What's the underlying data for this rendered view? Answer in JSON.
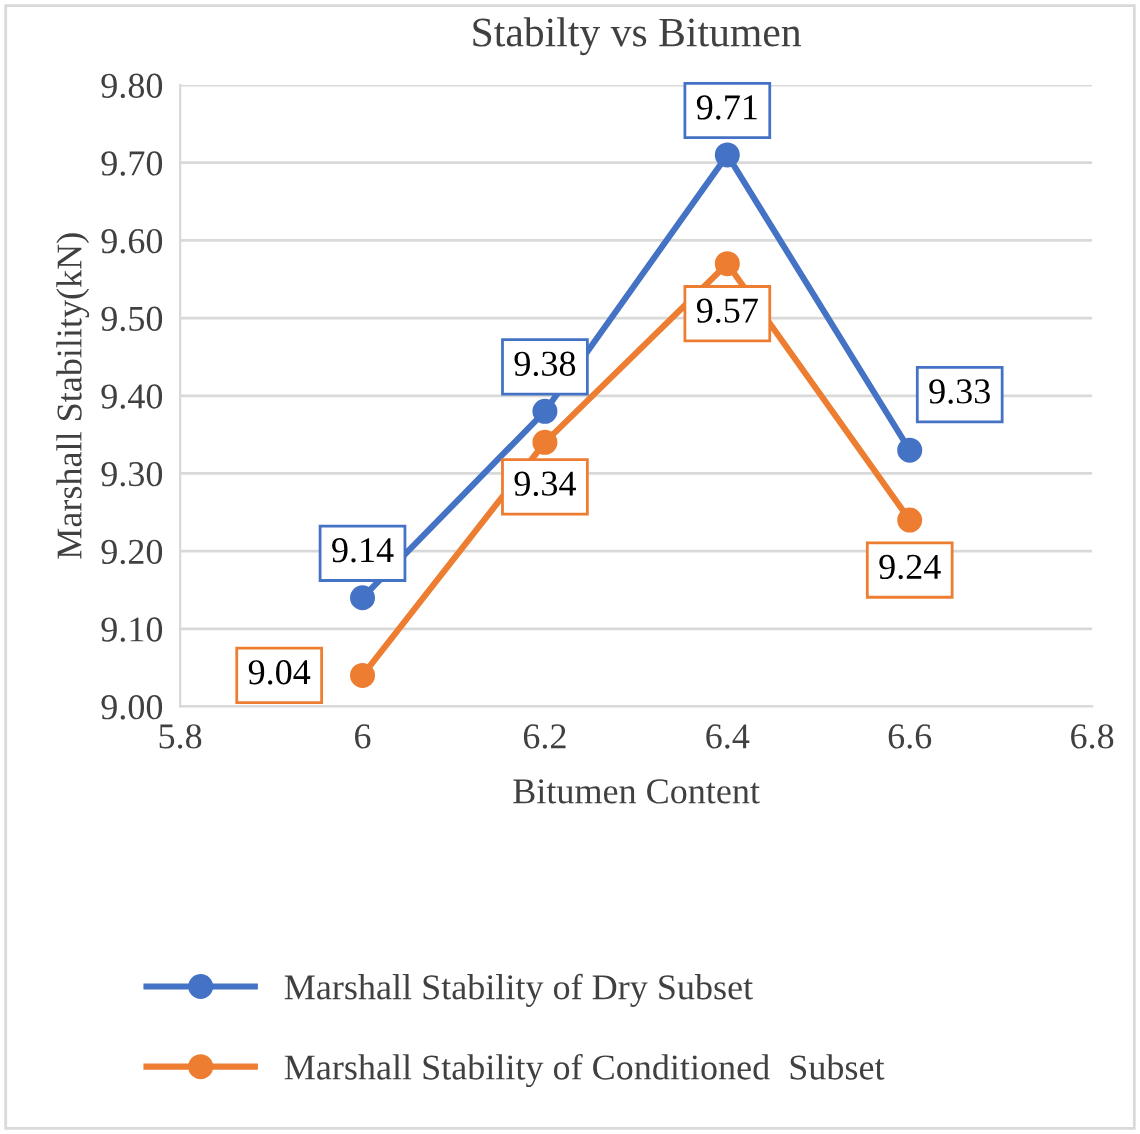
{
  "chart_data": {
    "type": "line",
    "title": "Stabilty vs Bitumen",
    "xlabel": "Bitumen Content",
    "ylabel": "Marshall Stability(kN)",
    "x": [
      6,
      6.2,
      6.4,
      6.6
    ],
    "series": [
      {
        "name": "Marshall Stability of Dry Subset",
        "color": "#4472c4",
        "values": [
          9.14,
          9.38,
          9.71,
          9.33
        ]
      },
      {
        "name": "Marshall Stability of Conditioned  Subset",
        "color": "#ed7d31",
        "values": [
          9.04,
          9.34,
          9.57,
          9.24
        ]
      }
    ],
    "xlim": [
      5.8,
      6.8
    ],
    "xticks": [
      5.8,
      6,
      6.2,
      6.4,
      6.6,
      6.8
    ],
    "ylim": [
      9.0,
      9.8
    ],
    "yticks": [
      {
        "value": 9.0,
        "label": "9.00"
      },
      {
        "value": 9.1,
        "label": "9.10"
      },
      {
        "value": 9.2,
        "label": "9.20"
      },
      {
        "value": 9.3,
        "label": "9.30"
      },
      {
        "value": 9.4,
        "label": "9.40"
      },
      {
        "value": 9.5,
        "label": "9.50"
      },
      {
        "value": 9.6,
        "label": "9.60"
      },
      {
        "value": 9.7,
        "label": "9.70"
      },
      {
        "value": 9.8,
        "label": "9.80"
      }
    ],
    "grid": "y",
    "legend": "bottom",
    "marker": "circle",
    "line_style": "solid",
    "data_labels": true
  }
}
